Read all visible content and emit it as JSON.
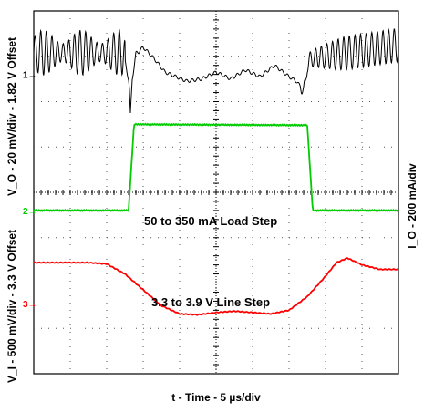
{
  "chart_data": {
    "type": "line",
    "title": "",
    "xlabel": "t - Time - 5 µs/div",
    "ylabel_left_top": "V_O - 20 mV/div - 1.82 V Offset",
    "ylabel_left_bottom": "V_I - 500 mV/div - 3.3 V Offset",
    "ylabel_right": "I_O - 200 mA/div",
    "grid": true,
    "grid_divisions": {
      "x": 10,
      "y": 8
    },
    "xlim": [
      0,
      10
    ],
    "ylim": [
      0,
      8
    ],
    "channel_markers": [
      {
        "label": "1",
        "div": 6.6,
        "color": "#000000"
      },
      {
        "label": "2",
        "div": 3.6,
        "color": "#00cc00"
      },
      {
        "label": "3",
        "div": 1.55,
        "color": "#ff0000"
      }
    ],
    "annotations": [
      "50 to 350 mA Load Step",
      "3.3 to 3.9 V Line Step"
    ],
    "series": [
      {
        "channel": 1,
        "color": "#000000",
        "x": [
          0,
          2.45,
          2.6,
          2.62,
          2.65,
          2.7,
          2.8,
          3.0,
          3.3,
          3.6,
          3.9,
          4.2,
          4.6,
          5.0,
          5.4,
          5.8,
          6.2,
          6.6,
          7.0,
          7.2,
          7.4,
          7.45,
          7.5,
          7.6,
          10
        ],
        "y": [
          7.08,
          7.08,
          6.5,
          6.3,
          5.7,
          6.5,
          7.05,
          7.2,
          6.95,
          6.65,
          6.55,
          6.45,
          6.5,
          6.65,
          6.5,
          6.7,
          6.55,
          6.8,
          6.55,
          6.45,
          6.25,
          6.4,
          6.8,
          6.95,
          7.25
        ]
      },
      {
        "channel": 2,
        "color": "#00cc00",
        "x": [
          0,
          2.6,
          2.75,
          7.5,
          7.65,
          10
        ],
        "y": [
          3.6,
          3.6,
          5.5,
          5.48,
          3.6,
          3.6
        ]
      },
      {
        "channel": 3,
        "color": "#ff0000",
        "x": [
          0,
          1.5,
          2.0,
          2.5,
          3.0,
          3.5,
          4.0,
          4.5,
          5.0,
          5.5,
          6.0,
          6.5,
          7.0,
          7.5,
          8.0,
          8.3,
          8.6,
          9.0,
          9.5,
          10
        ],
        "y": [
          2.45,
          2.45,
          2.42,
          2.2,
          1.85,
          1.5,
          1.32,
          1.3,
          1.35,
          1.38,
          1.35,
          1.32,
          1.4,
          1.7,
          2.15,
          2.45,
          2.55,
          2.4,
          2.3,
          2.3
        ]
      }
    ]
  }
}
